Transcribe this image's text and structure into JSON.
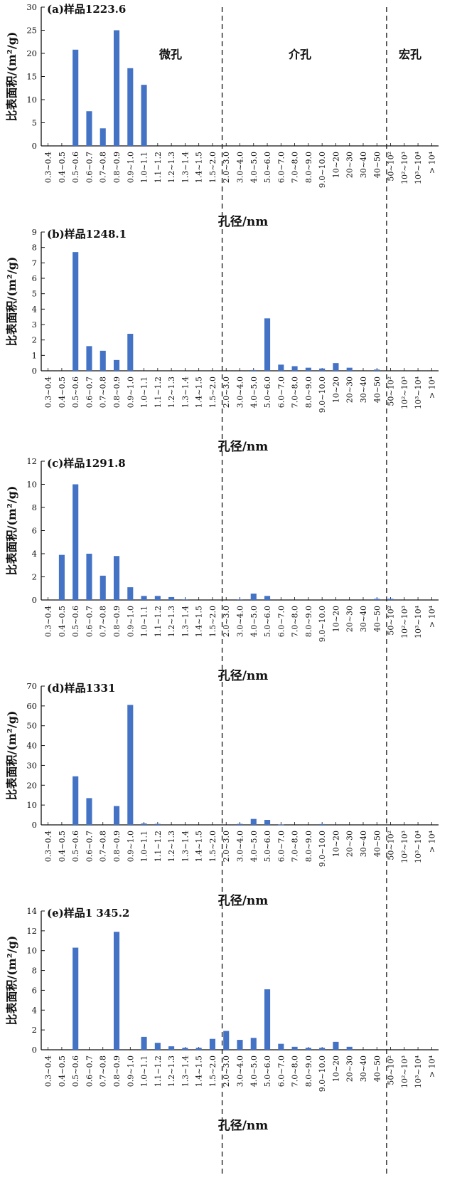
{
  "chart_data": {
    "type": "bar",
    "categories": [
      "0.3~0.4",
      "0.4~0.5",
      "0.5~0.6",
      "0.6~0.7",
      "0.7~0.8",
      "0.8~0.9",
      "0.9~1.0",
      "1.0~1.1",
      "1.1~1.2",
      "1.2~1.3",
      "1.3~1.4",
      "1.4~1.5",
      "1.5~2.0",
      "2.0~3.0",
      "3.0~4.0",
      "4.0~5.0",
      "5.0~6.0",
      "6.0~7.0",
      "7.0~8.0",
      "8.0~9.0",
      "9.0~10.0",
      "10~20",
      "20~30",
      "30~40",
      "40~50",
      "50~10²",
      "10²~10³",
      "10³~10⁴",
      "> 10⁴"
    ],
    "xlabel": "孔径/nm",
    "ylabel": "比表面积/(m²/g)",
    "regions": {
      "micro": "微孔",
      "meso": "介孔",
      "macro": "宏孔"
    },
    "bar_color": "#4472c4",
    "panels": [
      {
        "title": "(a)样品1223.6",
        "ylim": [
          0,
          30
        ],
        "yticks": [
          0,
          5,
          10,
          15,
          20,
          25,
          30
        ],
        "show_regions": true,
        "values": [
          0,
          0,
          20.8,
          7.5,
          3.8,
          25.0,
          16.8,
          13.2,
          0,
          0,
          0,
          0,
          0,
          0,
          0,
          0,
          0,
          0,
          0,
          0,
          0,
          0,
          0,
          0,
          0,
          0,
          0,
          0,
          0
        ]
      },
      {
        "title": "(b)样品1248.1",
        "ylim": [
          0,
          9
        ],
        "yticks": [
          0,
          1,
          2,
          3,
          4,
          5,
          6,
          7,
          8,
          9
        ],
        "show_regions": false,
        "values": [
          0,
          0,
          7.7,
          1.6,
          1.3,
          0.7,
          2.4,
          0,
          0,
          0,
          0,
          0,
          0,
          0,
          0,
          0.05,
          3.4,
          0.4,
          0.3,
          0.2,
          0.15,
          0.5,
          0.2,
          0,
          0.08,
          0,
          0,
          0,
          0
        ]
      },
      {
        "title": "(c)样品1291.8",
        "ylim": [
          0,
          12
        ],
        "yticks": [
          0,
          2,
          4,
          6,
          8,
          10,
          12
        ],
        "show_regions": false,
        "values": [
          0,
          3.9,
          10.0,
          4.0,
          2.1,
          3.8,
          1.1,
          0.35,
          0.35,
          0.25,
          0.05,
          0,
          0,
          0,
          0.05,
          0.55,
          0.35,
          0,
          0,
          0,
          0,
          0,
          0,
          0,
          0.1,
          0.1,
          0,
          0,
          0
        ]
      },
      {
        "title": "(d)样品1331",
        "ylim": [
          0,
          70
        ],
        "yticks": [
          0,
          10,
          20,
          30,
          40,
          50,
          60,
          70
        ],
        "show_regions": false,
        "values": [
          0,
          0,
          24.5,
          13.5,
          0,
          9.5,
          60.5,
          0.7,
          0.5,
          0,
          0,
          0,
          0,
          0,
          0.5,
          3.0,
          2.5,
          0.2,
          0,
          0,
          0.4,
          0,
          0,
          0,
          0,
          0,
          0,
          0,
          0
        ]
      },
      {
        "title": "(e)样品1 345.2",
        "ylim": [
          0,
          14
        ],
        "yticks": [
          0,
          2,
          4,
          6,
          8,
          10,
          12,
          14
        ],
        "show_regions": false,
        "values": [
          0,
          0,
          10.3,
          0,
          0,
          11.9,
          0,
          1.3,
          0.7,
          0.35,
          0.2,
          0.2,
          1.1,
          1.9,
          1.0,
          1.2,
          6.1,
          0.6,
          0.3,
          0.2,
          0.2,
          0.8,
          0.3,
          0,
          0,
          0,
          0,
          0,
          0
        ]
      }
    ]
  }
}
